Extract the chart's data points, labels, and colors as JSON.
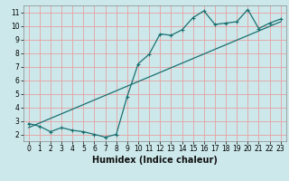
{
  "xlabel": "Humidex (Indice chaleur)",
  "background_color": "#cce8eb",
  "grid_color": "#e8a0a0",
  "line_color": "#1a7070",
  "hours": [
    0,
    1,
    2,
    3,
    4,
    5,
    6,
    7,
    8,
    9,
    10,
    11,
    12,
    13,
    14,
    15,
    16,
    17,
    18,
    19,
    20,
    21,
    22,
    23
  ],
  "humidex": [
    2.8,
    2.6,
    2.2,
    2.5,
    2.3,
    2.2,
    2.0,
    1.8,
    2.0,
    4.8,
    7.2,
    7.9,
    9.4,
    9.3,
    9.7,
    10.6,
    11.1,
    10.1,
    10.2,
    10.3,
    11.2,
    9.8,
    10.2,
    10.5
  ],
  "trend_x": [
    0,
    23
  ],
  "trend_y": [
    2.5,
    10.3
  ],
  "ylim": [
    1.5,
    11.5
  ],
  "yticks": [
    2,
    3,
    4,
    5,
    6,
    7,
    8,
    9,
    10,
    11
  ],
  "xlim": [
    -0.5,
    23.5
  ],
  "xlabel_fontsize": 7,
  "tick_fontsize": 5.5
}
